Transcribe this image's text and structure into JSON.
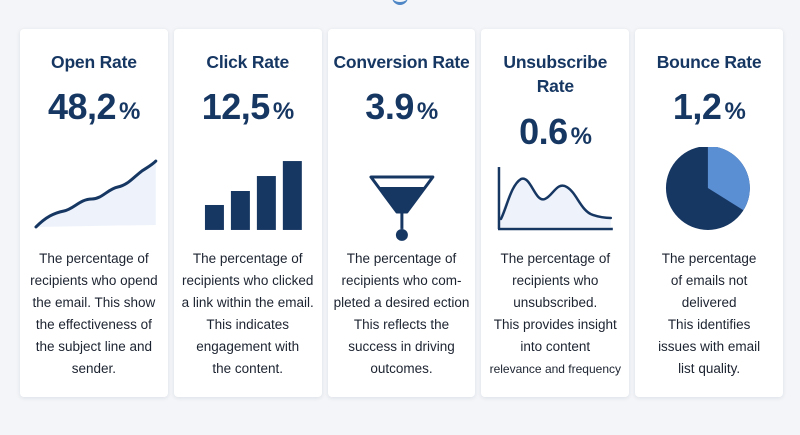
{
  "cards": [
    {
      "title": "Open Rate",
      "value": "48,2",
      "unit": "%",
      "icon": "line-chart-icon",
      "description": [
        "The percentage of",
        "recipients who opend",
        "the email. This show",
        "the effectiveness of",
        "the subject line and",
        "sender."
      ]
    },
    {
      "title": "Click Rate",
      "value": "12,5",
      "unit": "%",
      "icon": "bar-chart-icon",
      "description": [
        "The percentage of",
        "recipients who clicked",
        "a link within the email.",
        "This indicates",
        "engagement with",
        "the content."
      ]
    },
    {
      "title": "Conversion Rate",
      "value": "3.9",
      "unit": "%",
      "icon": "funnel-icon",
      "description": [
        "The percentage of",
        "recipients who com-",
        "pleted a desired ection",
        "This reflects the",
        "success in driving",
        "outcomes."
      ]
    },
    {
      "title_line1": "Unsubscribe",
      "title_line2": "Rate",
      "value": "0.6",
      "unit": "%",
      "icon": "wave-chart-icon",
      "description": [
        "The percentage of",
        "recipients who",
        "unsubscribed.",
        "This provides insight",
        "into content",
        "relevance and frequency"
      ]
    },
    {
      "title": "Bounce Rate",
      "value": "1,2",
      "unit": "%",
      "icon": "pie-chart-icon",
      "description": [
        "The percentage",
        "of emails not",
        "delivered",
        "This identifies",
        "issues with email",
        "list quality."
      ]
    }
  ],
  "colors": {
    "navy": "#173763",
    "light_blue": "#5b8fd3",
    "pale_blue": "#eef3fb",
    "text": "#1c2330"
  }
}
